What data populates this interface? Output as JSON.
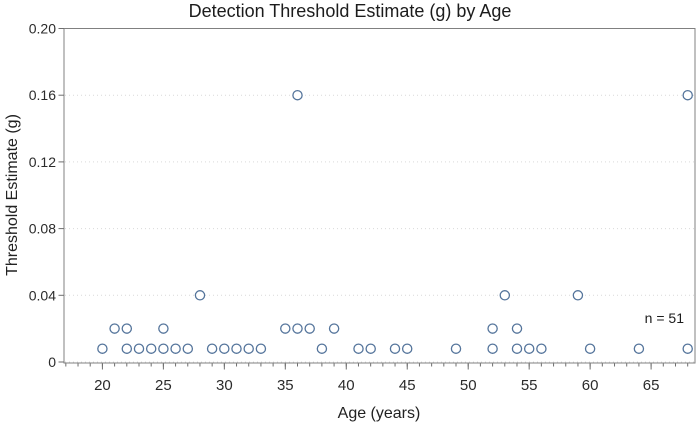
{
  "chart_data": {
    "type": "scatter",
    "title": "Detection Threshold Estimate (g) by Age",
    "xlabel": "Age (years)",
    "ylabel": "Threshold Estimate (g)",
    "annotation": "n = 51",
    "legend": "none",
    "grid": "horizontal-dotted",
    "x_axis": {
      "min": 16.85,
      "max": 68.6,
      "major_ticks": [
        {
          "v": 20,
          "label": "20"
        },
        {
          "v": 25,
          "label": "25"
        },
        {
          "v": 30,
          "label": "30"
        },
        {
          "v": 35,
          "label": "35"
        },
        {
          "v": 40,
          "label": "40"
        },
        {
          "v": 45,
          "label": "45"
        },
        {
          "v": 50,
          "label": "50"
        },
        {
          "v": 55,
          "label": "55"
        },
        {
          "v": 60,
          "label": "60"
        },
        {
          "v": 65,
          "label": "65"
        }
      ],
      "minor_ticks": {
        "from": 17,
        "to": 68,
        "step": 1
      }
    },
    "y_axis": {
      "min": 0,
      "max": 0.2,
      "ticks": [
        {
          "v": 0.0,
          "label": "0",
          "grid": true
        },
        {
          "v": 0.04,
          "label": "0.04",
          "grid": true
        },
        {
          "v": 0.08,
          "label": "0.08",
          "grid": true
        },
        {
          "v": 0.12,
          "label": "0.12",
          "grid": true
        },
        {
          "v": 0.16,
          "label": "0.16",
          "grid": true
        },
        {
          "v": 0.2,
          "label": "0.20",
          "grid": false
        }
      ]
    },
    "points": [
      [
        20,
        0.008
      ],
      [
        21,
        0.02
      ],
      [
        22,
        0.02
      ],
      [
        22,
        0.008
      ],
      [
        23,
        0.008
      ],
      [
        24,
        0.008
      ],
      [
        25,
        0.02
      ],
      [
        25,
        0.008
      ],
      [
        26,
        0.008
      ],
      [
        27,
        0.008
      ],
      [
        28,
        0.04
      ],
      [
        29,
        0.008
      ],
      [
        30,
        0.008
      ],
      [
        31,
        0.008
      ],
      [
        32,
        0.008
      ],
      [
        33,
        0.008
      ],
      [
        35,
        0.02
      ],
      [
        36,
        0.16
      ],
      [
        36,
        0.02
      ],
      [
        37,
        0.02
      ],
      [
        38,
        0.008
      ],
      [
        39,
        0.02
      ],
      [
        41,
        0.008
      ],
      [
        42,
        0.008
      ],
      [
        44,
        0.008
      ],
      [
        45,
        0.008
      ],
      [
        49,
        0.008
      ],
      [
        52,
        0.02
      ],
      [
        52,
        0.008
      ],
      [
        53,
        0.04
      ],
      [
        54,
        0.02
      ],
      [
        54,
        0.008
      ],
      [
        55,
        0.008
      ],
      [
        56,
        0.008
      ],
      [
        59,
        0.04
      ],
      [
        60,
        0.008
      ],
      [
        64,
        0.008
      ],
      [
        68,
        0.16
      ],
      [
        68,
        0.008
      ]
    ],
    "colors": {
      "marker_stroke": "#54749b",
      "marker_fill": "#ffffff",
      "frame": "#808080",
      "grid": "#d9d9d9",
      "tick": "#6e6e6e",
      "background": "#ffffff"
    }
  }
}
